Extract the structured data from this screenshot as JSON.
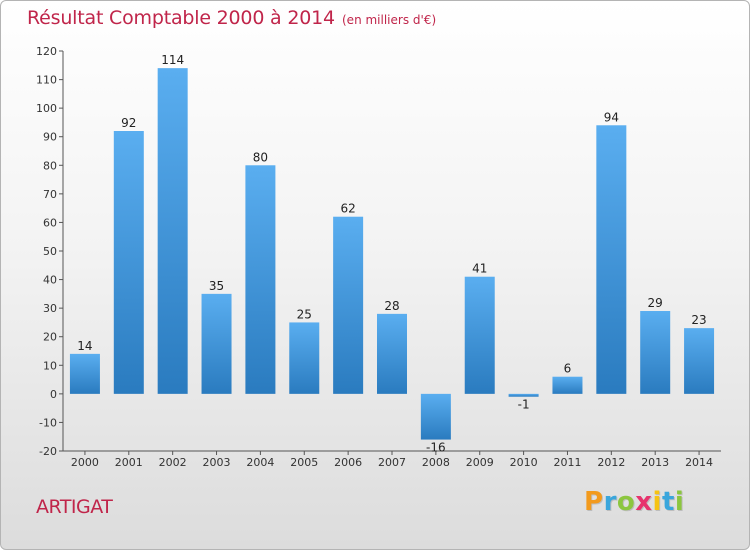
{
  "chart_data": {
    "type": "bar",
    "title": "Résultat Comptable 2000 à 2014",
    "subtitle": "(en milliers d'€)",
    "categories": [
      "2000",
      "2001",
      "2002",
      "2003",
      "2004",
      "2005",
      "2006",
      "2007",
      "2008",
      "2009",
      "2010",
      "2011",
      "2012",
      "2013",
      "2014"
    ],
    "values": [
      14,
      92,
      114,
      35,
      80,
      25,
      62,
      28,
      -16,
      41,
      -1,
      6,
      94,
      29,
      23
    ],
    "ylim": [
      -20,
      120
    ],
    "yticks": [
      -20,
      -10,
      0,
      10,
      20,
      30,
      40,
      50,
      60,
      70,
      80,
      90,
      100,
      110,
      120
    ],
    "grid": false,
    "xlabel": "",
    "ylabel": "",
    "bar_color_top": "#5aaef0",
    "bar_color_bottom": "#2a7bbf"
  },
  "footer": {
    "commune": "ARTIGAT",
    "logo_letters": [
      {
        "ch": "P",
        "color": "#f29a1d"
      },
      {
        "ch": "r",
        "color": "#3aa6dc"
      },
      {
        "ch": "o",
        "color": "#8cc63f"
      },
      {
        "ch": "x",
        "color": "#e7336d"
      },
      {
        "ch": "i",
        "color": "#f6c313"
      },
      {
        "ch": "t",
        "color": "#3aa6dc"
      },
      {
        "ch": "i",
        "color": "#8cc63f"
      }
    ]
  },
  "colors": {
    "title": "#c0254a",
    "axis": "#555555"
  }
}
